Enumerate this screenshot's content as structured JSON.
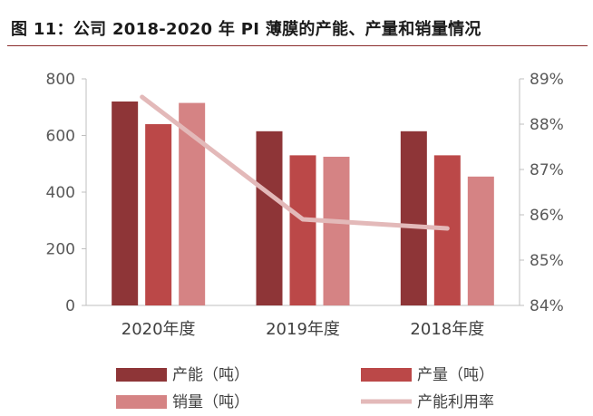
{
  "header": {
    "title": "图 11：公司 2018-2020 年 PI 薄膜的产能、产量和销量情况"
  },
  "colors": {
    "capacity": "#8e3537",
    "production": "#bb4848",
    "sales": "#d58384",
    "utilization": "#e3b9b9",
    "axis": "#bfbfbf",
    "rule": "#8b2d2d"
  },
  "chart_data": {
    "type": "bar",
    "categories": [
      "2020年度",
      "2019年度",
      "2018年度"
    ],
    "series": [
      {
        "name": "产能（吨）",
        "axis": "left",
        "values": [
          720,
          615,
          615
        ]
      },
      {
        "name": "产量（吨）",
        "axis": "left",
        "values": [
          640,
          530,
          530
        ]
      },
      {
        "name": "销量（吨）",
        "axis": "left",
        "values": [
          715,
          525,
          455
        ]
      },
      {
        "name": "产能利用率",
        "axis": "right",
        "type": "line",
        "values": [
          88.6,
          85.9,
          85.7
        ]
      }
    ],
    "y_left": {
      "ylim": [
        0,
        800
      ],
      "ticks": [
        "0",
        "200",
        "400",
        "600",
        "800"
      ]
    },
    "y_right": {
      "ylim": [
        84,
        89
      ],
      "ticks": [
        "84%",
        "85%",
        "86%",
        "87%",
        "88%",
        "89%"
      ]
    },
    "legend_position": "bottom",
    "grid": false
  }
}
